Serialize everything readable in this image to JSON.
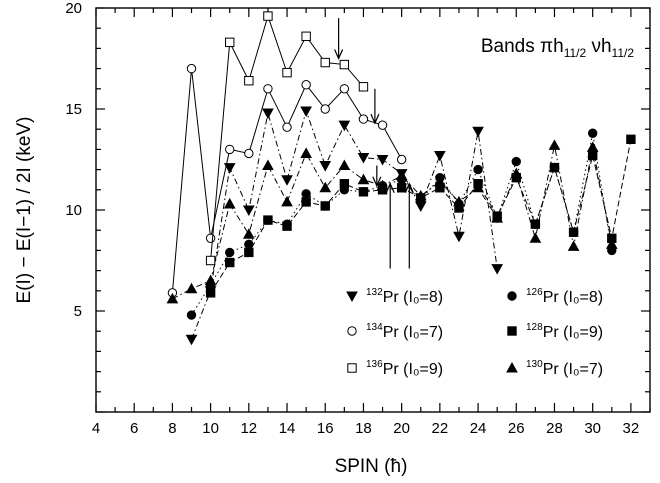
{
  "chart_data": {
    "type": "line",
    "title": {
      "prefix": "Bands ",
      "parts": [
        {
          "text": "πh",
          "sub": "11/2"
        },
        {
          "text": " νh",
          "sub": "11/2"
        }
      ]
    },
    "xlabel": "SPIN (ħ)",
    "ylabel": "E(I) − E(I−1) / 2I (keV)",
    "xlim": [
      4,
      33
    ],
    "ylim": [
      0,
      20
    ],
    "xticks": [
      4,
      6,
      8,
      10,
      12,
      14,
      16,
      18,
      20,
      22,
      24,
      26,
      28,
      30,
      32
    ],
    "yticks": [
      5,
      10,
      15,
      20
    ],
    "grid": false,
    "legend_placement": "bottom-right",
    "series": [
      {
        "key": "pr132",
        "legend": {
          "mass": "132",
          "element": "Pr",
          "i0": "(I₀=8)"
        },
        "marker": "triangle-down",
        "filled": true,
        "line": "dash-dot",
        "x": [
          9,
          10,
          11,
          12,
          13,
          14,
          15,
          16,
          17,
          18,
          19,
          20,
          21,
          22,
          23,
          24,
          25
        ],
        "y": [
          3.6,
          6.0,
          12.1,
          10.0,
          14.8,
          11.5,
          14.9,
          12.2,
          14.2,
          12.6,
          12.5,
          11.8,
          10.2,
          12.7,
          8.7,
          13.9,
          7.1
        ]
      },
      {
        "key": "pr134",
        "legend": {
          "mass": "134",
          "element": "Pr",
          "i0": "(I₀=7)"
        },
        "marker": "circle",
        "filled": false,
        "line": "solid",
        "x": [
          8,
          9,
          10,
          11,
          12,
          13,
          14,
          15,
          16,
          17,
          18,
          19,
          20
        ],
        "y": [
          5.9,
          17.0,
          8.6,
          13.0,
          12.8,
          16.0,
          14.1,
          16.2,
          15.0,
          16.0,
          14.5,
          14.2,
          12.5
        ]
      },
      {
        "key": "pr136",
        "legend": {
          "mass": "136",
          "element": "Pr",
          "i0": "(I₀=9)"
        },
        "marker": "square",
        "filled": false,
        "line": "solid",
        "x": [
          10,
          11,
          12,
          13,
          14,
          15,
          16,
          17,
          18
        ],
        "y": [
          7.5,
          18.3,
          16.4,
          19.6,
          16.8,
          18.6,
          17.3,
          17.2,
          16.1
        ]
      },
      {
        "key": "pr126",
        "legend": {
          "mass": "126",
          "element": "Pr",
          "i0": "(I₀=8)"
        },
        "marker": "circle",
        "filled": true,
        "line": "dotted",
        "x": [
          9,
          10,
          11,
          12,
          13,
          14,
          15,
          16,
          17,
          18,
          19,
          20,
          21,
          22,
          23,
          24,
          25,
          26,
          27,
          28,
          29,
          30,
          31
        ],
        "y": [
          4.8,
          6.3,
          7.9,
          8.3,
          9.5,
          9.3,
          10.8,
          10.2,
          11.0,
          10.9,
          11.2,
          11.5,
          10.5,
          11.6,
          10.3,
          12.0,
          9.6,
          12.4,
          9.3,
          12.1,
          8.9,
          13.8,
          8.0
        ]
      },
      {
        "key": "pr128",
        "legend": {
          "mass": "128",
          "element": "Pr",
          "i0": "(I₀=9)"
        },
        "marker": "square",
        "filled": true,
        "line": "dashed",
        "x": [
          10,
          11,
          12,
          13,
          14,
          15,
          16,
          17,
          18,
          19,
          20,
          21,
          22,
          23,
          24,
          25,
          26,
          27,
          28,
          29,
          30,
          31,
          32
        ],
        "y": [
          5.9,
          7.4,
          7.9,
          9.5,
          9.2,
          10.4,
          10.2,
          11.3,
          10.9,
          11.0,
          11.1,
          10.6,
          11.1,
          10.1,
          11.3,
          9.7,
          11.6,
          9.3,
          12.1,
          8.9,
          12.7,
          8.6,
          13.5
        ]
      },
      {
        "key": "pr130",
        "legend": {
          "mass": "130",
          "element": "Pr",
          "i0": "(I₀=7)"
        },
        "marker": "triangle-up",
        "filled": true,
        "line": "dash-dot",
        "x": [
          8,
          9,
          10,
          11,
          12,
          13,
          14,
          15,
          16,
          17,
          18,
          19,
          20,
          21,
          22,
          23,
          24,
          25,
          26,
          27,
          28,
          29,
          30,
          31
        ],
        "y": [
          5.6,
          6.1,
          6.5,
          10.3,
          8.8,
          12.2,
          10.4,
          12.8,
          11.1,
          12.2,
          11.5,
          11.2,
          11.7,
          10.7,
          11.4,
          10.4,
          11.1,
          9.6,
          11.8,
          8.6,
          13.2,
          8.2,
          13.1,
          8.3
        ]
      }
    ],
    "annotations": [
      {
        "type": "arrow-down",
        "x": 16.7,
        "y_from": 19.5,
        "y_to": 17.5
      },
      {
        "type": "arrow-down",
        "x": 18.6,
        "y_from": 16.0,
        "y_to": 14.3
      },
      {
        "type": "arrow-down",
        "x": 18.7,
        "y_from": 12.2,
        "y_to": 11.2
      },
      {
        "type": "arrow-up",
        "x": 19.4,
        "y_from": 7.1,
        "y_to": 11.3
      },
      {
        "type": "arrow-up",
        "x": 20.4,
        "y_from": 7.1,
        "y_to": 11.3
      }
    ]
  }
}
